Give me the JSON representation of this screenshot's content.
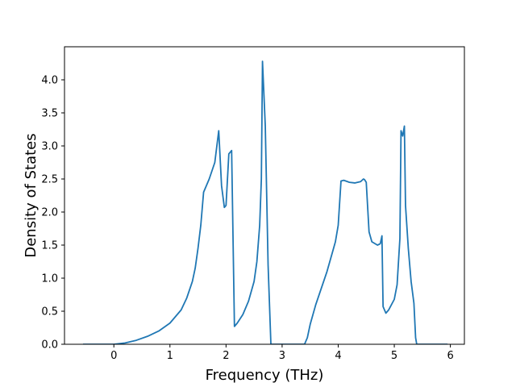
{
  "chart_data": {
    "type": "line",
    "title": "",
    "xlabel": "Frequency (THz)",
    "ylabel": "Density of States",
    "xlim": [
      -0.88,
      6.25
    ],
    "ylim": [
      0.0,
      4.5
    ],
    "xticks": [
      0,
      1,
      2,
      3,
      4,
      5,
      6
    ],
    "yticks": [
      0.0,
      0.5,
      1.0,
      1.5,
      2.0,
      2.5,
      3.0,
      3.5,
      4.0
    ],
    "xtick_labels": [
      "0",
      "1",
      "2",
      "3",
      "4",
      "5",
      "6"
    ],
    "ytick_labels": [
      "0.0",
      "0.5",
      "1.0",
      "1.5",
      "2.0",
      "2.5",
      "3.0",
      "3.5",
      "4.0"
    ],
    "grid": false,
    "legend": "none",
    "line_color": "#1f77b4",
    "series": [
      {
        "x": [
          -0.55,
          0.0,
          0.2,
          0.4,
          0.6,
          0.8,
          1.0,
          1.2,
          1.3,
          1.4,
          1.45,
          1.5,
          1.55,
          1.6,
          1.7,
          1.8,
          1.87,
          1.92,
          1.97,
          2.0,
          2.05,
          2.1,
          2.15,
          2.2,
          2.3,
          2.4,
          2.5,
          2.55,
          2.6,
          2.63,
          2.65,
          2.7,
          2.75,
          2.8,
          3.0,
          3.2,
          3.4,
          3.45,
          3.5,
          3.6,
          3.7,
          3.8,
          3.9,
          3.95,
          4.0,
          4.05,
          4.1,
          4.2,
          4.3,
          4.4,
          4.45,
          4.47,
          4.5,
          4.55,
          4.6,
          4.7,
          4.75,
          4.78,
          4.8,
          4.85,
          4.9,
          5.0,
          5.05,
          5.1,
          5.12,
          5.15,
          5.18,
          5.2,
          5.25,
          5.3,
          5.35,
          5.38,
          5.4,
          5.5,
          5.95
        ],
        "y": [
          0.0,
          0.0,
          0.02,
          0.06,
          0.12,
          0.2,
          0.32,
          0.52,
          0.7,
          0.95,
          1.15,
          1.45,
          1.8,
          2.3,
          2.5,
          2.75,
          3.23,
          2.4,
          2.07,
          2.1,
          2.88,
          2.93,
          0.27,
          0.32,
          0.45,
          0.65,
          0.95,
          1.25,
          1.8,
          2.5,
          4.28,
          3.3,
          1.2,
          0.0,
          0.0,
          0.0,
          0.0,
          0.1,
          0.3,
          0.6,
          0.85,
          1.1,
          1.4,
          1.55,
          1.8,
          2.47,
          2.48,
          2.45,
          2.44,
          2.46,
          2.5,
          2.49,
          2.45,
          1.7,
          1.55,
          1.5,
          1.52,
          1.64,
          0.57,
          0.47,
          0.52,
          0.68,
          0.9,
          1.6,
          3.23,
          3.15,
          3.3,
          2.1,
          1.45,
          0.95,
          0.62,
          0.1,
          0.0,
          0.0,
          0.0
        ]
      }
    ]
  }
}
